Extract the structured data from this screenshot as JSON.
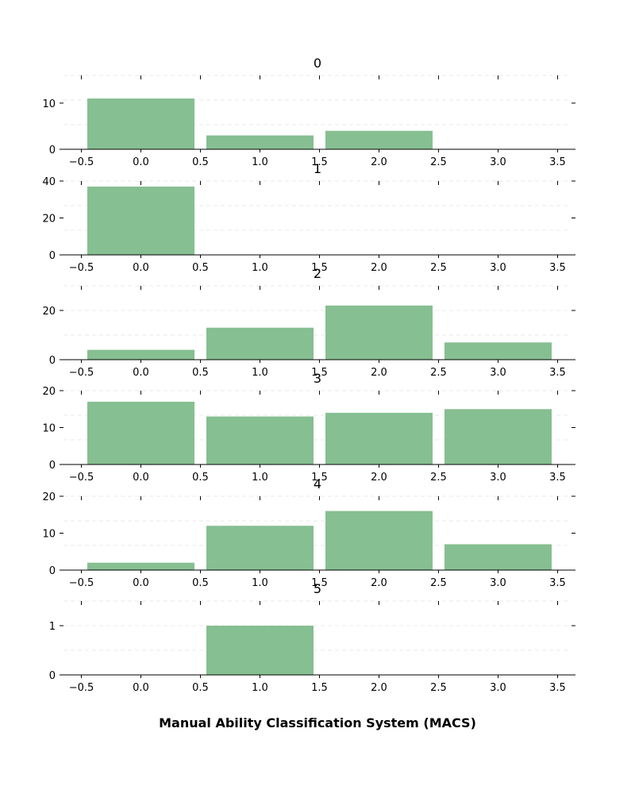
{
  "chart_data": {
    "type": "bar",
    "xlabel": "Manual Ability Classification System (MACS)",
    "x_ticks": [
      "−0.5",
      "0.0",
      "0.5",
      "1.0",
      "1.5",
      "2.0",
      "2.5",
      "3.0",
      "3.5"
    ],
    "xlim": [
      -0.65,
      3.65
    ],
    "bar_color": "#86bf91",
    "grid": true,
    "panels": [
      {
        "title": "0",
        "x": [
          0,
          1,
          2,
          3
        ],
        "values": [
          11,
          3,
          4,
          0
        ],
        "ylim": [
          0,
          16
        ],
        "y_ticks": [
          0,
          10
        ]
      },
      {
        "title": "1",
        "x": [
          0,
          1,
          2,
          3
        ],
        "values": [
          37,
          0,
          0,
          0
        ],
        "ylim": [
          0,
          40
        ],
        "y_ticks": [
          0,
          20,
          40
        ]
      },
      {
        "title": "2",
        "x": [
          0,
          1,
          2,
          3
        ],
        "values": [
          4,
          13,
          22,
          7
        ],
        "ylim": [
          0,
          30
        ],
        "y_ticks": [
          0,
          20
        ]
      },
      {
        "title": "3",
        "x": [
          0,
          1,
          2,
          3
        ],
        "values": [
          17,
          13,
          14,
          15
        ],
        "ylim": [
          0,
          20
        ],
        "y_ticks": [
          0,
          10,
          20
        ]
      },
      {
        "title": "4",
        "x": [
          0,
          1,
          2,
          3
        ],
        "values": [
          2,
          12,
          16,
          7
        ],
        "ylim": [
          0,
          20
        ],
        "y_ticks": [
          0,
          10,
          20
        ]
      },
      {
        "title": "5",
        "x": [
          0,
          1,
          2,
          3
        ],
        "values": [
          0,
          1,
          0,
          0
        ],
        "ylim": [
          0,
          1.5
        ],
        "y_ticks": [
          0,
          1
        ]
      }
    ]
  }
}
